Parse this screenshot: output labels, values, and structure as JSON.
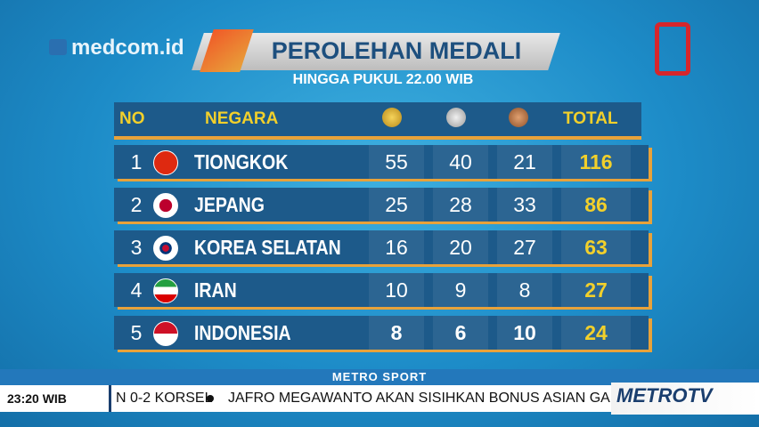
{
  "logo": "medcom.id",
  "title": "PEROLEHAN MEDALI",
  "subtitle": "HINGGA PUKUL 22.00 WIB",
  "table": {
    "header": {
      "rank": "NO",
      "country": "NEGARA",
      "total": "TOTAL"
    },
    "rows": [
      [
        "1",
        "TIONGKOK",
        "55",
        "40",
        "21",
        "116"
      ],
      [
        "2",
        "JEPANG",
        "25",
        "28",
        "33",
        "86"
      ],
      [
        "3",
        "KOREA SELATAN",
        "16",
        "20",
        "27",
        "63"
      ],
      [
        "4",
        "IRAN",
        "10",
        "9",
        "8",
        "27"
      ],
      [
        "5",
        "INDONESIA",
        "8",
        "6",
        "10",
        "24"
      ]
    ]
  },
  "program": "METRO SPORT",
  "ticker": {
    "time": "23:20 WIB",
    "items": [
      "N 0-2 KORSEL",
      "JAFRO MEGAWANTO AKAN SISIHKAN BONUS ASIAN GAM"
    ]
  },
  "channel": {
    "part1": "METRO",
    "part2": "TV"
  }
}
